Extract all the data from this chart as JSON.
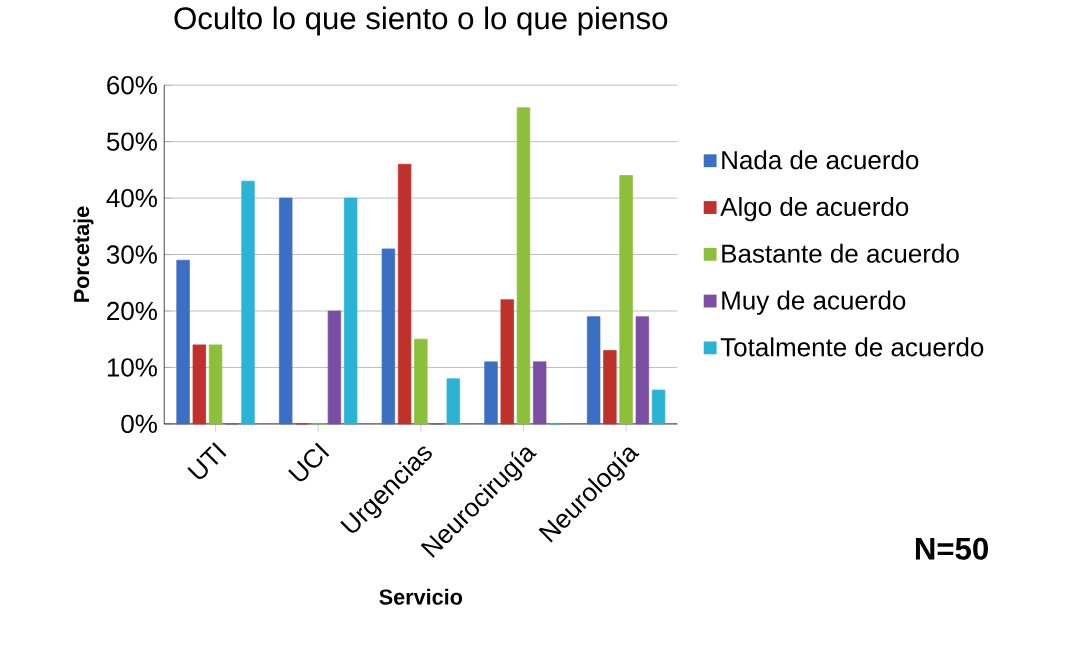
{
  "chart_data": {
    "type": "bar",
    "title": "Oculto lo que siento o lo que pienso",
    "xlabel": "Servicio",
    "ylabel": "Porcetaje",
    "categories": [
      "UTI",
      "UCI",
      "Urgencias",
      "Neurocirugía",
      "Neurología"
    ],
    "series": [
      {
        "name": "Nada de acuerdo",
        "color": "#3a6fc4",
        "values": [
          29,
          40,
          31,
          11,
          19
        ]
      },
      {
        "name": "Algo de acuerdo",
        "color": "#c0312b",
        "values": [
          14,
          0,
          46,
          22,
          13
        ]
      },
      {
        "name": "Bastante de acuerdo",
        "color": "#8cbf3a",
        "values": [
          14,
          0,
          15,
          56,
          44
        ]
      },
      {
        "name": "Muy de acuerdo",
        "color": "#7a4fa3",
        "values": [
          0,
          20,
          0,
          11,
          19
        ]
      },
      {
        "name": "Totalmente de acuerdo",
        "color": "#2ab3d4",
        "values": [
          43,
          40,
          8,
          0,
          6
        ]
      }
    ],
    "ylim": [
      0,
      60
    ],
    "yticks": [
      {
        "value": 0,
        "label": "0%"
      },
      {
        "value": 10,
        "label": "10%"
      },
      {
        "value": 20,
        "label": "20%"
      },
      {
        "value": 30,
        "label": "30%"
      },
      {
        "value": 40,
        "label": "40%"
      },
      {
        "value": 50,
        "label": "50%"
      },
      {
        "value": 60,
        "label": "60%"
      }
    ],
    "grid": "y",
    "legend": "right",
    "annotations": [
      "N=50"
    ]
  }
}
